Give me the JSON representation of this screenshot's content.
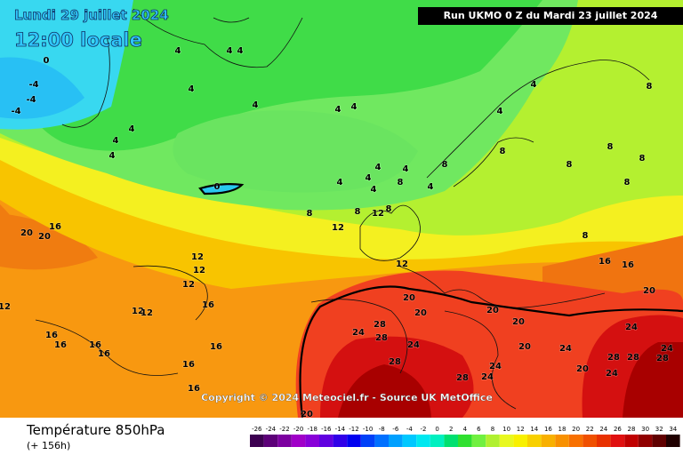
{
  "header": {
    "date": "Lundi 29 juillet 2024",
    "time": "12:00 locale",
    "run": "Run UKMO 0 Z du Mardi 23 juillet 2024"
  },
  "map": {
    "copyright": "Copyright © 2024 Meteociel.fr - Source UK MetOffice",
    "contour_labels": [
      -4,
      -4,
      -4,
      0,
      4,
      4,
      4,
      4,
      4,
      4,
      4,
      4,
      4,
      4,
      4,
      4,
      4,
      4,
      4,
      4,
      4,
      4,
      0,
      8,
      8,
      8,
      8,
      8,
      8,
      8,
      8,
      8,
      8,
      8,
      8,
      12,
      12,
      12,
      12,
      12,
      12,
      12,
      12,
      12,
      16,
      16,
      16,
      16,
      16,
      16,
      16,
      16,
      16,
      16,
      16,
      20,
      20,
      20,
      20,
      20,
      20,
      20,
      20,
      20,
      20,
      24,
      24,
      24,
      24,
      24,
      24,
      24,
      24,
      28,
      28,
      28,
      28,
      28,
      28,
      28
    ]
  },
  "footer": {
    "title": "Température 850hPa",
    "lead": "(+ 156h)"
  },
  "legend": {
    "ticks": [
      -26,
      -24,
      -22,
      -20,
      -18,
      -16,
      -14,
      -12,
      -10,
      -8,
      -6,
      -4,
      -2,
      0,
      2,
      4,
      6,
      8,
      10,
      12,
      14,
      16,
      18,
      20,
      22,
      24,
      26,
      28,
      30,
      32,
      34
    ],
    "colors": [
      "#3c0050",
      "#5c0078",
      "#7c00a0",
      "#a000c8",
      "#8800d8",
      "#6000e0",
      "#3000e8",
      "#0000f0",
      "#0040f8",
      "#0070ff",
      "#00a0ff",
      "#00c8ff",
      "#00e8f0",
      "#00f0c0",
      "#00e070",
      "#30e030",
      "#70f040",
      "#b0f030",
      "#e8f820",
      "#f8f000",
      "#f8d000",
      "#f8b000",
      "#f89000",
      "#f87000",
      "#f05000",
      "#e83000",
      "#e01010",
      "#c00000",
      "#900000",
      "#600000",
      "#200000"
    ]
  }
}
